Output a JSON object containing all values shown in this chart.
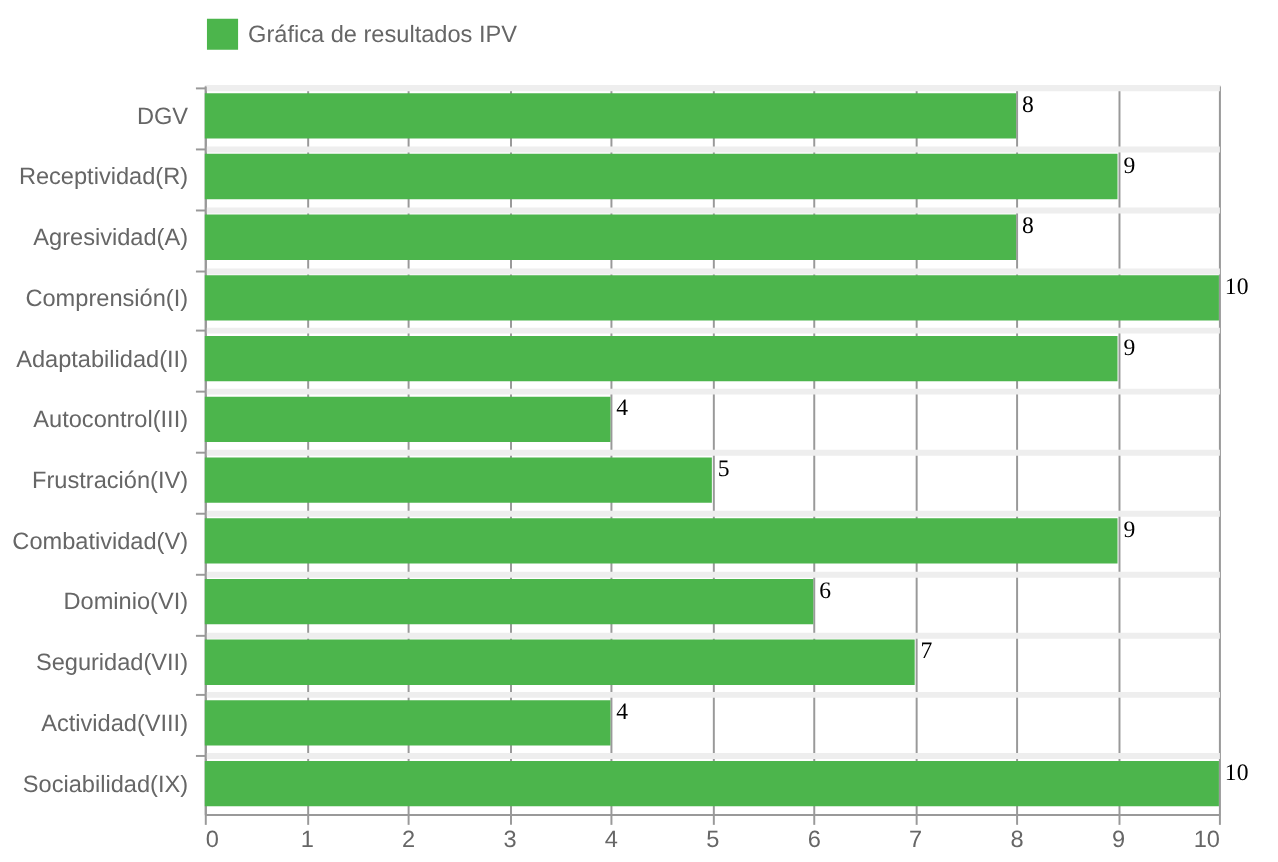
{
  "chart_data": {
    "type": "bar",
    "orientation": "horizontal",
    "categories": [
      "DGV",
      "Receptividad(R)",
      "Agresividad(A)",
      "Comprensión(I)",
      "Adaptabilidad(II)",
      "Autocontrol(III)",
      "Frustración(IV)",
      "Combatividad(V)",
      "Dominio(VI)",
      "Seguridad(VII)",
      "Actividad(VIII)",
      "Sociabilidad(IX)"
    ],
    "series": [
      {
        "name": "Gráfica de resultados IPV",
        "color": "#4cb54c",
        "values": [
          8,
          9,
          8,
          10,
          9,
          4,
          5,
          9,
          6,
          7,
          4,
          10
        ]
      }
    ],
    "xlim": [
      0,
      10
    ],
    "xticks": [
      0,
      1,
      2,
      3,
      4,
      5,
      6,
      7,
      8,
      9,
      10
    ],
    "grid": true,
    "legend": "top",
    "data_labels": true
  }
}
